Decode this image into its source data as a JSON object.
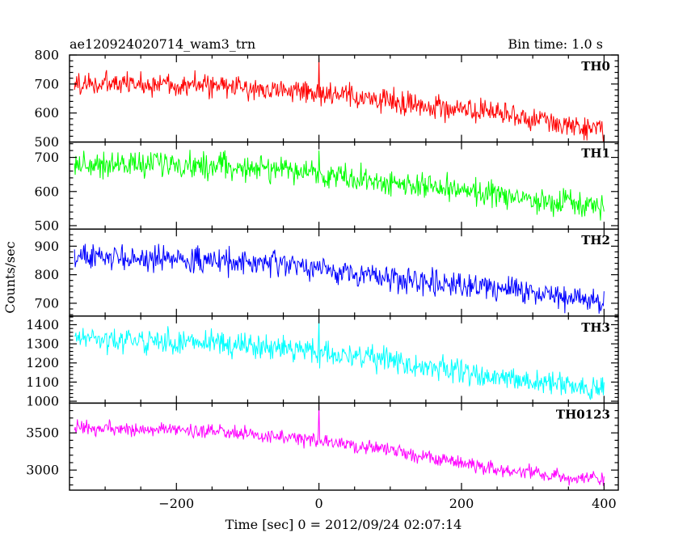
{
  "chart_data": {
    "type": "line",
    "title": "ae120924020714_wam3_trn",
    "subtitle": "Bin time: 1.0 s",
    "xlabel": "Time [sec] 0 = 2012/09/24 02:07:14",
    "ylabel": "Counts/sec",
    "xlim": [
      -350,
      420
    ],
    "x_ticks": [
      -200,
      0,
      200,
      400
    ],
    "x_tick_labels": [
      "−200",
      "0",
      "200",
      "400"
    ],
    "grid": false,
    "panels": [
      {
        "name": "TH0",
        "color": "#ff0000",
        "ylim": [
          500,
          800
        ],
        "y_ticks": [
          500,
          600,
          700,
          800
        ],
        "trend": [
          [
            -343,
            700
          ],
          [
            -200,
            700
          ],
          [
            -50,
            680
          ],
          [
            100,
            640
          ],
          [
            250,
            595
          ],
          [
            400,
            545
          ]
        ],
        "noise": 30,
        "spikes": [
          [
            0,
            790
          ],
          [
            105,
            690
          ]
        ]
      },
      {
        "name": "TH1",
        "color": "#00ff00",
        "ylim": [
          490,
          745
        ],
        "y_ticks": [
          500,
          600,
          700
        ],
        "trend": [
          [
            -343,
            680
          ],
          [
            -200,
            680
          ],
          [
            -50,
            665
          ],
          [
            100,
            625
          ],
          [
            250,
            590
          ],
          [
            400,
            550
          ]
        ],
        "noise": 28,
        "spikes": [
          [
            0,
            720
          ]
        ]
      },
      {
        "name": "TH2",
        "color": "#0000ff",
        "ylim": [
          655,
          960
        ],
        "y_ticks": [
          700,
          800,
          900
        ],
        "trend": [
          [
            -343,
            862
          ],
          [
            -200,
            855
          ],
          [
            -50,
            835
          ],
          [
            100,
            790
          ],
          [
            250,
            755
          ],
          [
            400,
            705
          ]
        ],
        "noise": 32
      },
      {
        "name": "TH3",
        "color": "#00ffff",
        "ylim": [
          990,
          1445
        ],
        "y_ticks": [
          1000,
          1100,
          1200,
          1300,
          1400
        ],
        "trend": [
          [
            -343,
            1330
          ],
          [
            -200,
            1310
          ],
          [
            -50,
            1280
          ],
          [
            100,
            1210
          ],
          [
            250,
            1130
          ],
          [
            400,
            1060
          ]
        ],
        "noise": 45,
        "spikes": [
          [
            0,
            1430
          ]
        ]
      },
      {
        "name": "TH0123",
        "color": "#ff00ff",
        "ylim": [
          2730,
          3900
        ],
        "y_ticks": [
          3000,
          3500
        ],
        "trend": [
          [
            -343,
            3560
          ],
          [
            -200,
            3540
          ],
          [
            -50,
            3450
          ],
          [
            100,
            3260
          ],
          [
            250,
            3010
          ],
          [
            400,
            2860
          ]
        ],
        "noise": 70,
        "spikes": [
          [
            0,
            3870
          ]
        ]
      }
    ]
  }
}
